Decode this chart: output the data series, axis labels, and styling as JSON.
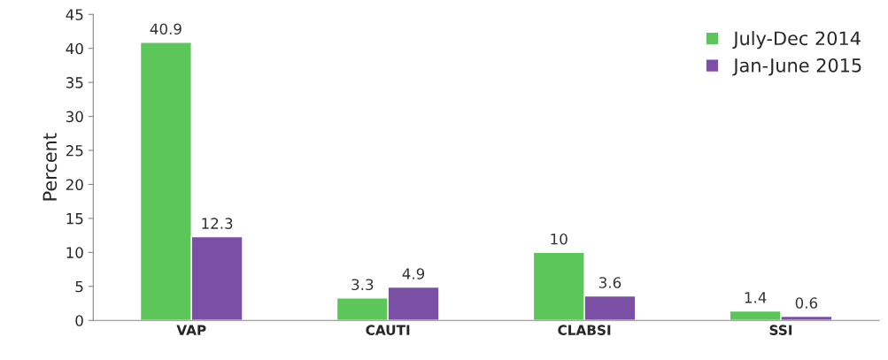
{
  "chart_data": {
    "type": "bar",
    "ylabel": "Percent",
    "categories": [
      "VAP",
      "CAUTI",
      "CLABSI",
      "SSI"
    ],
    "series": [
      {
        "name": "July-Dec 2014",
        "color": "#5cc65a",
        "values": [
          40.9,
          3.3,
          10,
          1.4
        ]
      },
      {
        "name": "Jan-June 2015",
        "color": "#7b4fa6",
        "values": [
          12.3,
          4.9,
          3.6,
          0.6
        ]
      }
    ],
    "ylim": [
      0,
      45
    ],
    "yticks": [
      0,
      5,
      10,
      15,
      20,
      25,
      30,
      35,
      40,
      45
    ],
    "data_labels": true,
    "grid": false,
    "legend": "top right"
  }
}
